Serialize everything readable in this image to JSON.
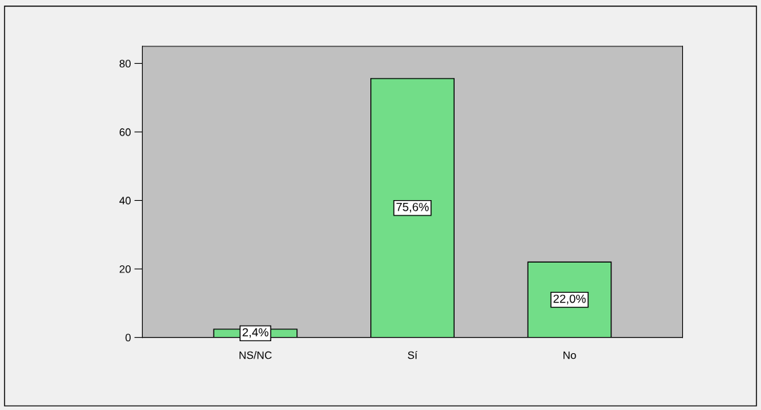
{
  "chart_data": {
    "type": "bar",
    "categories": [
      "NS/NC",
      "Sí",
      "No"
    ],
    "values": [
      2.4,
      75.6,
      22.0
    ],
    "value_labels": [
      "2,4%",
      "75,6%",
      "22,0%"
    ],
    "color": "#72dd88",
    "ylim": [
      0,
      85
    ],
    "yticks": [
      0,
      20,
      40,
      60,
      80
    ],
    "grid": false,
    "legend": false
  }
}
